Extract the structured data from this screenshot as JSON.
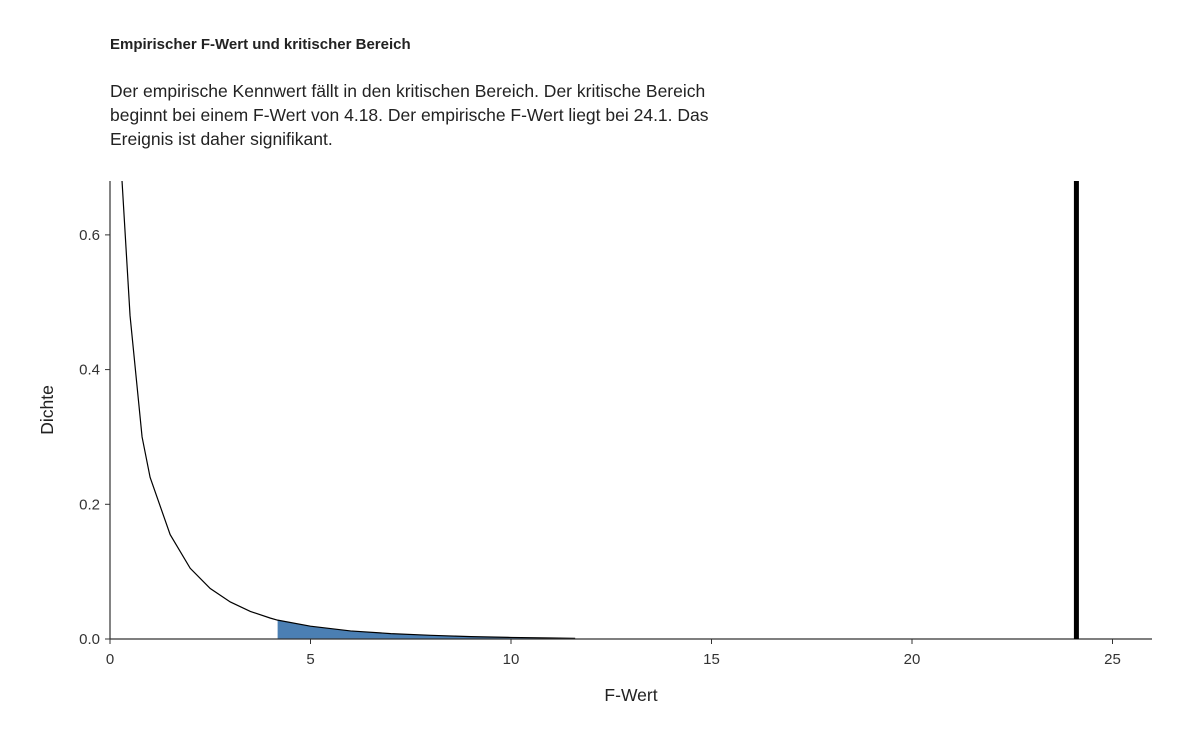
{
  "title": "Empirischer F-Wert und kritischer Bereich",
  "subtitle": "Der empirische Kennwert fällt in den kritischen Bereich. Der kritische Bereich beginnt bei einem F-Wert von 4.18. Der empirische F-Wert liegt bei 24.1. Das Ereignis ist daher signifikant.",
  "chart_data": {
    "type": "area",
    "xlabel": "F-Wert",
    "ylabel": "Dichte",
    "xlim": [
      0,
      26
    ],
    "ylim": [
      0,
      0.68
    ],
    "xticks": [
      0,
      5,
      10,
      15,
      20,
      25
    ],
    "yticks": [
      0.0,
      0.2,
      0.4,
      0.6
    ],
    "ytick_labels": [
      "0.0",
      "0.2",
      "0.4",
      "0.6"
    ],
    "density_curve": {
      "x": [
        0.3,
        0.5,
        0.8,
        1,
        1.5,
        2,
        2.5,
        3,
        3.5,
        4,
        4.18,
        5,
        6,
        7,
        8,
        9,
        10,
        11,
        11.6
      ],
      "y": [
        0.68,
        0.48,
        0.3,
        0.24,
        0.155,
        0.105,
        0.075,
        0.055,
        0.041,
        0.031,
        0.028,
        0.019,
        0.012,
        0.008,
        0.0055,
        0.0035,
        0.0023,
        0.0015,
        0.001
      ]
    },
    "critical_region": {
      "start": 4.18,
      "end": 11.6,
      "color": "#4b7fb3"
    },
    "empirical_value": 24.1,
    "empirical_line_color": "#000000",
    "grid": false,
    "legend": "none"
  }
}
